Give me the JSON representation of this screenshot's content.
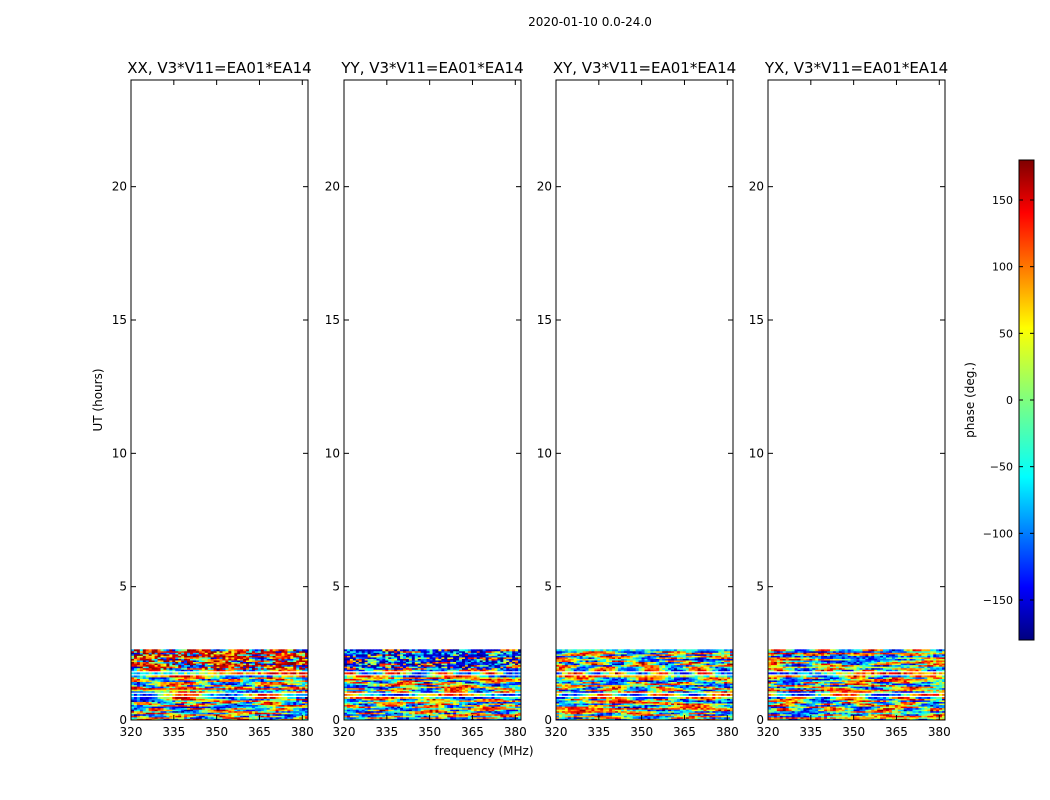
{
  "figure_title": "2020-01-10 0.0-24.0",
  "chart_data": {
    "type": "heatmap",
    "suptitle": "2020-01-10 0.0-24.0",
    "xlabel": "frequency (MHz)",
    "ylabel": "UT (hours)",
    "xlim": [
      320,
      382
    ],
    "ylim": [
      0,
      24
    ],
    "xticks": [
      320,
      335,
      350,
      365,
      380
    ],
    "yticks": [
      0,
      5,
      10,
      15,
      20
    ],
    "data_extent_hours": [
      0,
      2.65
    ],
    "panels": [
      {
        "title": "XX, V3*V11=EA01*EA14",
        "polarization": "XX"
      },
      {
        "title": "YY, V3*V11=EA01*EA14",
        "polarization": "YY"
      },
      {
        "title": "XY, V3*V11=EA01*EA14",
        "polarization": "XY"
      },
      {
        "title": "YX, V3*V11=EA01*EA14",
        "polarization": "YX"
      }
    ],
    "colorbar": {
      "label": "phase (deg.)",
      "range": [
        -180,
        180
      ],
      "ticks": [
        -150,
        -100,
        -50,
        0,
        50,
        100,
        150
      ],
      "colormap": "jet"
    }
  }
}
